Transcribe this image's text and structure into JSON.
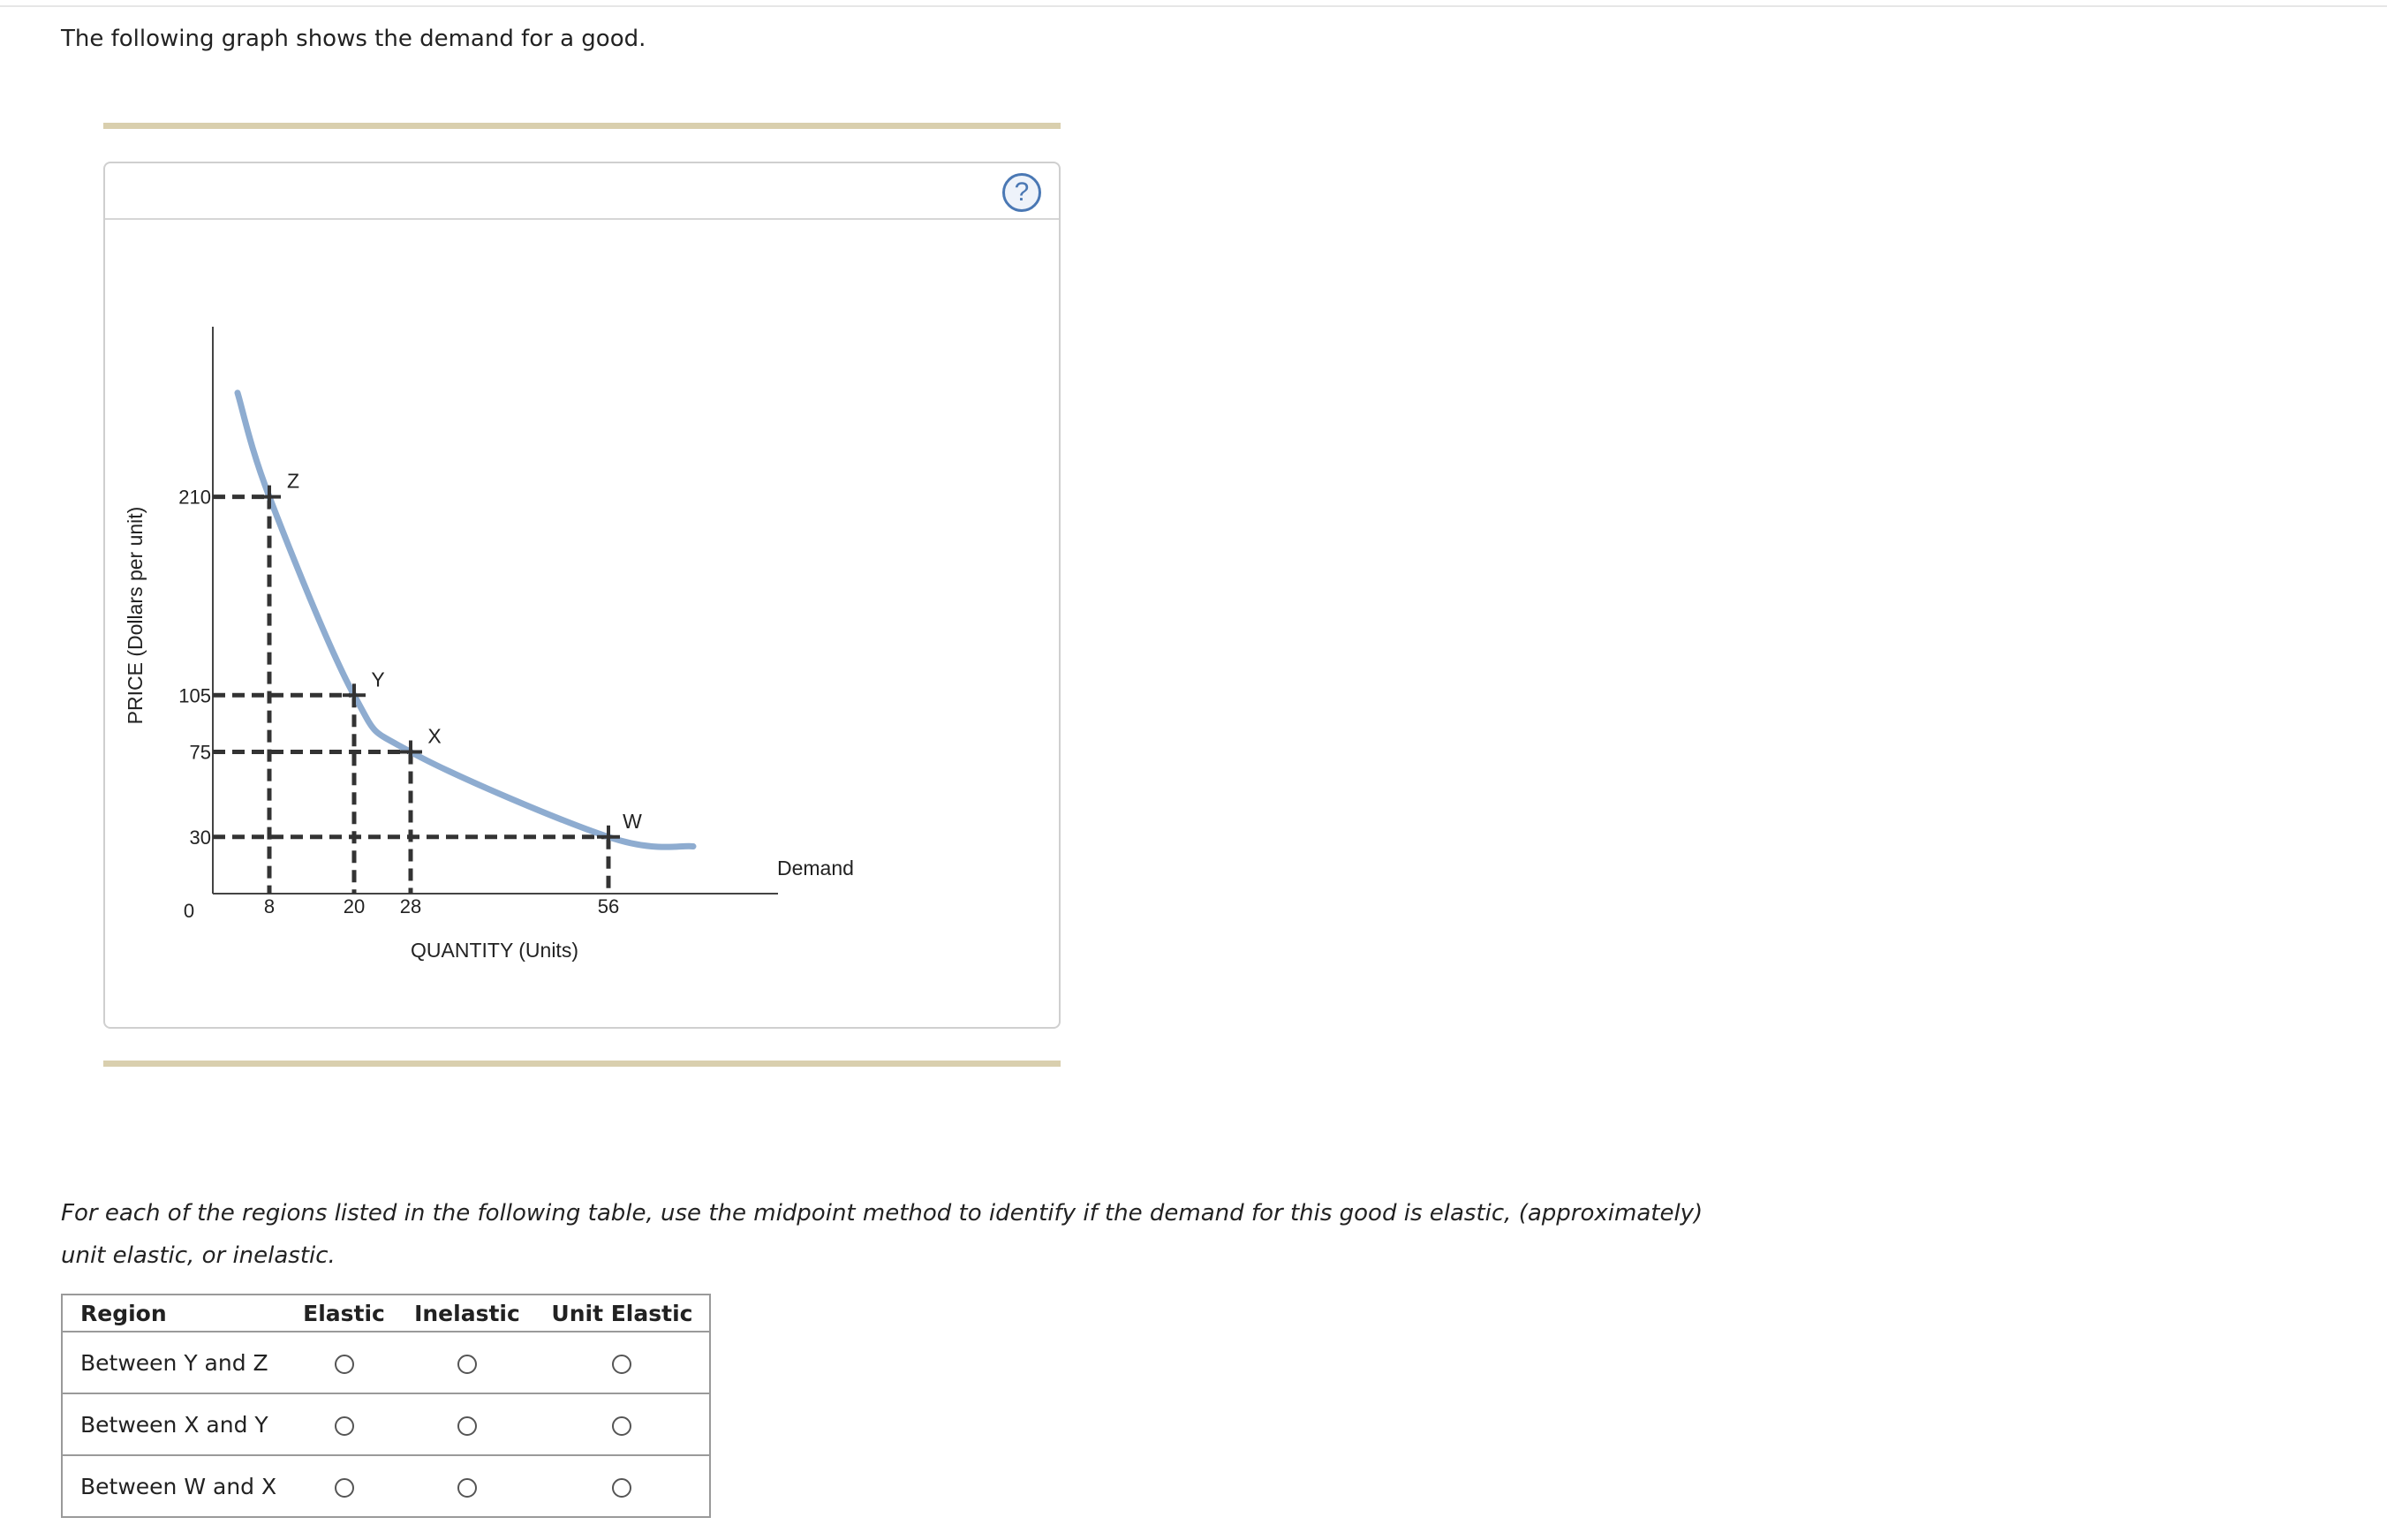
{
  "intro_text": "The following graph shows the demand for a good.",
  "help_label": "?",
  "chart_data": {
    "type": "line",
    "title": "",
    "xlabel": "QUANTITY (Units)",
    "ylabel": "PRICE (Dollars per unit)",
    "xlim": [
      0,
      64
    ],
    "ylim": [
      0,
      290
    ],
    "origin_label": "0",
    "x_ticks": [
      "8",
      "20",
      "28",
      "56"
    ],
    "y_ticks": [
      "210",
      "105",
      "75",
      "30"
    ],
    "grid": false,
    "curve_label": "Demand",
    "curve_color": "#8eacd0",
    "guide_color": "#333333",
    "points": [
      {
        "label": "Z",
        "x": 8,
        "y": 210
      },
      {
        "label": "Y",
        "x": 20,
        "y": 105
      },
      {
        "label": "X",
        "x": 28,
        "y": 75
      },
      {
        "label": "W",
        "x": 56,
        "y": 30
      }
    ]
  },
  "instructions": "For each of the regions listed in the following table, use the midpoint method to identify if the demand for this good is elastic, (approximately) unit elastic, or inelastic.",
  "table": {
    "headers": [
      "Region",
      "Elastic",
      "Inelastic",
      "Unit Elastic"
    ],
    "rows": [
      {
        "region": "Between Y and Z"
      },
      {
        "region": "Between X and Y"
      },
      {
        "region": "Between W and X"
      }
    ]
  }
}
